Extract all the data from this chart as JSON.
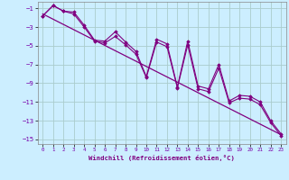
{
  "xlabel": "Windchill (Refroidissement éolien,°C)",
  "background_color": "#cceeff",
  "grid_color": "#aacccc",
  "line_color": "#800080",
  "marker_color": "#800080",
  "xlim": [
    -0.5,
    23.5
  ],
  "ylim": [
    -15.5,
    -0.3
  ],
  "yticks": [
    -15,
    -13,
    -11,
    -9,
    -7,
    -5,
    -3,
    -1
  ],
  "xticks": [
    0,
    1,
    2,
    3,
    4,
    5,
    6,
    7,
    8,
    9,
    10,
    11,
    12,
    13,
    14,
    15,
    16,
    17,
    18,
    19,
    20,
    21,
    22,
    23
  ],
  "line1_x": [
    0,
    1,
    2,
    3,
    4,
    5,
    6,
    7,
    8,
    9,
    10,
    11,
    12,
    13,
    14,
    15,
    16,
    17,
    18,
    19,
    20,
    21,
    22,
    23
  ],
  "line1_y": [
    -1.8,
    -0.7,
    -1.3,
    -1.4,
    -2.8,
    -4.4,
    -4.5,
    -3.5,
    -4.6,
    -5.6,
    -8.3,
    -4.3,
    -4.8,
    -9.4,
    -4.5,
    -9.3,
    -9.6,
    -7.0,
    -10.9,
    -10.3,
    -10.4,
    -11.0,
    -13.0,
    -14.4
  ],
  "line2_x": [
    0,
    1,
    2,
    3,
    4,
    5,
    6,
    7,
    8,
    9,
    10,
    11,
    12,
    13,
    14,
    15,
    16,
    17,
    18,
    19,
    20,
    21,
    22,
    23
  ],
  "line2_y": [
    -1.8,
    -0.7,
    -1.3,
    -1.6,
    -3.0,
    -4.5,
    -4.7,
    -4.0,
    -4.9,
    -5.9,
    -8.4,
    -4.6,
    -5.1,
    -9.5,
    -4.9,
    -9.6,
    -9.9,
    -7.4,
    -11.1,
    -10.6,
    -10.7,
    -11.3,
    -13.2,
    -14.6
  ],
  "trend_x": [
    0,
    23
  ],
  "trend_y": [
    -1.6,
    -14.5
  ]
}
